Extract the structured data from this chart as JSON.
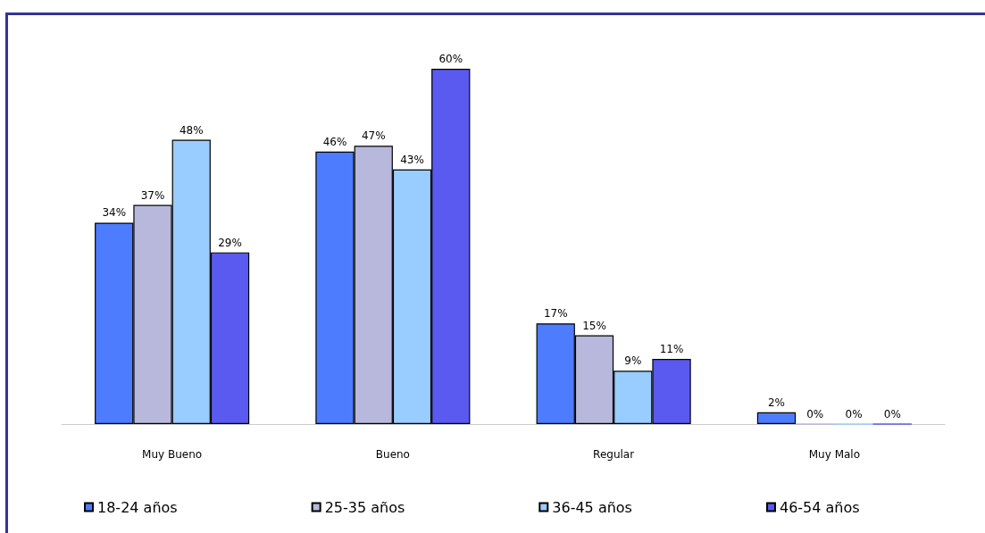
{
  "chart_data": {
    "type": "bar",
    "categories": [
      "Muy Bueno",
      "Bueno",
      "Regular",
      "Muy Malo"
    ],
    "series": [
      {
        "name": "18-24 años",
        "color": "#4d7cff",
        "values": [
          34,
          46,
          17,
          2
        ],
        "value_labels": [
          "34%",
          "46%",
          "17%",
          "2%"
        ]
      },
      {
        "name": "25-35 años",
        "color": "#b8b8dc",
        "values": [
          37,
          47,
          15,
          0
        ],
        "value_labels": [
          "37%",
          "47%",
          "15%",
          "0%"
        ]
      },
      {
        "name": "36-45 años",
        "color": "#99ccff",
        "values": [
          48,
          43,
          9,
          0
        ],
        "value_labels": [
          "48%",
          "43%",
          "9%",
          "0%"
        ]
      },
      {
        "name": "46-54 años",
        "color": "#5a5af0",
        "values": [
          29,
          60,
          11,
          0
        ],
        "value_labels": [
          "29%",
          "60%",
          "11%",
          "0%"
        ]
      }
    ],
    "legend": "bottom",
    "grid": false
  }
}
